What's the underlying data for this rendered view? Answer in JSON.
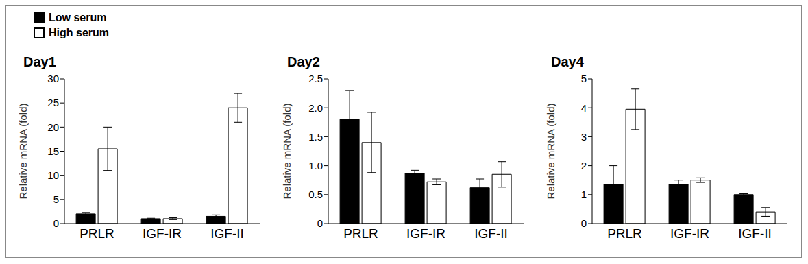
{
  "chart_data": [
    {
      "type": "bar",
      "title": "Day1",
      "y_label": "Relative mRNA (fold)",
      "legend": "upper left",
      "categories": [
        "PRLR",
        "IGF-IR",
        "IGF-II"
      ],
      "series": [
        {
          "name": "Low serum",
          "color": "#000000",
          "values": [
            2,
            1,
            1.5
          ],
          "errors": [
            0.3,
            0.1,
            0.3
          ]
        },
        {
          "name": "High serum",
          "color": "#ffffff",
          "values": [
            15.5,
            1,
            24
          ],
          "errors": [
            4.5,
            0.2,
            3
          ]
        }
      ],
      "ylim": [
        0,
        30
      ],
      "yticks": [
        0,
        5,
        10,
        15,
        20,
        25,
        30
      ]
    },
    {
      "type": "bar",
      "title": "Day2",
      "y_label": "Relative mRNA (fold)",
      "categories": [
        "PRLR",
        "IGF-IR",
        "IGF-II"
      ],
      "series": [
        {
          "name": "Low serum",
          "color": "#000000",
          "values": [
            1.8,
            0.87,
            0.62
          ],
          "errors": [
            0.5,
            0.05,
            0.15
          ]
        },
        {
          "name": "High serum",
          "color": "#ffffff",
          "values": [
            1.4,
            0.72,
            0.85
          ],
          "errors": [
            0.52,
            0.05,
            0.22
          ]
        }
      ],
      "ylim": [
        0,
        2.5
      ],
      "yticks": [
        0,
        0.5,
        {
          "value": 1,
          "label": "1.0"
        },
        1.5,
        {
          "value": 2,
          "label": "2.0"
        },
        2.5
      ]
    },
    {
      "type": "bar",
      "title": "Day4",
      "y_label": "Relative mRNA (fold)",
      "categories": [
        "PRLR",
        "IGF-IR",
        "IGF-II"
      ],
      "series": [
        {
          "name": "Low serum",
          "color": "#000000",
          "values": [
            1.35,
            1.35,
            1.0
          ],
          "errors": [
            0.65,
            0.15,
            0.03
          ]
        },
        {
          "name": "High serum",
          "color": "#ffffff",
          "values": [
            3.95,
            1.5,
            0.4
          ],
          "errors": [
            0.7,
            0.08,
            0.15
          ]
        }
      ],
      "ylim": [
        0,
        5
      ],
      "yticks": [
        0,
        1,
        2,
        3,
        4,
        5
      ]
    }
  ]
}
